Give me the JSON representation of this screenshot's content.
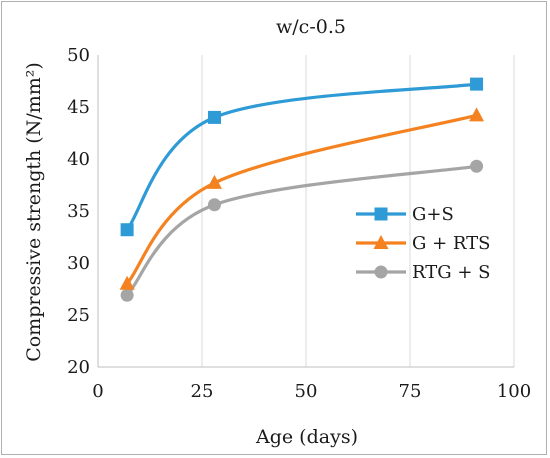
{
  "chart_data": {
    "type": "line",
    "title": "w/c-0.5",
    "xlabel": "Age (days)",
    "ylabel": "Compressive strength (N/mm²)",
    "xlim": [
      0,
      100
    ],
    "ylim": [
      20,
      50
    ],
    "xticks": [
      "0",
      "25",
      "50",
      "75",
      "100"
    ],
    "yticks": [
      "20",
      "25",
      "30",
      "35",
      "40",
      "45",
      "50"
    ],
    "grid": "vertical",
    "legend_position": "right",
    "x": [
      7,
      28,
      91
    ],
    "series": [
      {
        "name": "G+S",
        "values": [
          33.2,
          44.0,
          47.2
        ],
        "color": "#2e9bd6",
        "marker": "square"
      },
      {
        "name": "G + RTS",
        "values": [
          28.0,
          37.7,
          44.2
        ],
        "color": "#f58220",
        "marker": "triangle"
      },
      {
        "name": "RTG + S",
        "values": [
          26.9,
          35.6,
          39.3
        ],
        "color": "#a5a5a5",
        "marker": "circle"
      }
    ]
  }
}
